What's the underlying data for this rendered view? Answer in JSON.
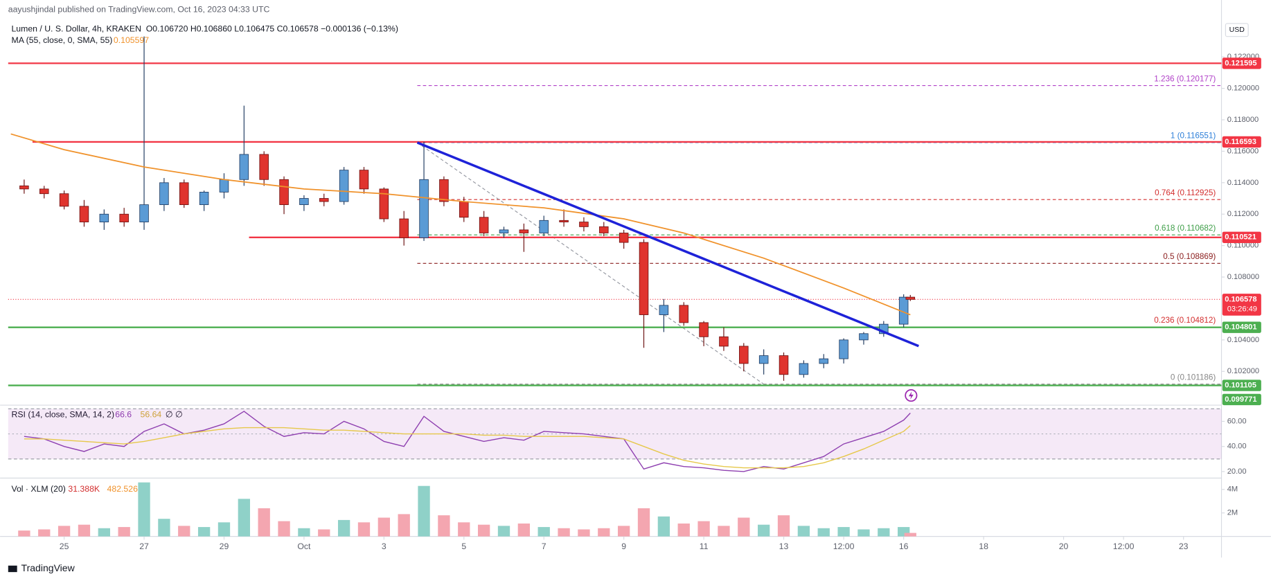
{
  "header": {
    "publisher": "aayushjindal published on TradingView.com, Oct 16, 2023 04:33 UTC",
    "symbol": "Lumen / U. S. Dollar, 4h, KRAKEN",
    "ohlc_text": "O0.106720 H0.106860 L0.106475 C0.106578 −0.000136 (−0.13%)",
    "currency": "USD",
    "brand": "TradingView"
  },
  "chart_data": [
    {
      "type": "candlestick",
      "x": [
        "2023-09-24T00:00",
        "2023-09-24T12:00",
        "2023-09-25T00:00",
        "2023-09-25T12:00",
        "2023-09-26T00:00",
        "2023-09-26T12:00",
        "2023-09-27T00:00",
        "2023-09-27T12:00",
        "2023-09-28T00:00",
        "2023-09-28T12:00",
        "2023-09-29T00:00",
        "2023-09-29T12:00",
        "2023-09-30T00:00",
        "2023-09-30T12:00",
        "2023-10-01T00:00",
        "2023-10-01T12:00",
        "2023-10-02T00:00",
        "2023-10-02T12:00",
        "2023-10-03T00:00",
        "2023-10-03T12:00",
        "2023-10-04T00:00",
        "2023-10-04T12:00",
        "2023-10-05T00:00",
        "2023-10-05T12:00",
        "2023-10-06T00:00",
        "2023-10-06T12:00",
        "2023-10-07T00:00",
        "2023-10-07T12:00",
        "2023-10-08T00:00",
        "2023-10-08T12:00",
        "2023-10-09T00:00",
        "2023-10-09T12:00",
        "2023-10-10T00:00",
        "2023-10-10T12:00",
        "2023-10-11T00:00",
        "2023-10-11T12:00",
        "2023-10-12T00:00",
        "2023-10-12T12:00",
        "2023-10-13T00:00",
        "2023-10-13T12:00",
        "2023-10-14T00:00",
        "2023-10-14T12:00",
        "2023-10-15T00:00",
        "2023-10-15T12:00",
        "2023-10-16T00:00",
        "2023-10-16T04:00"
      ],
      "open": [
        0.1138,
        0.1136,
        0.1133,
        0.1125,
        0.1115,
        0.112,
        0.1115,
        0.1126,
        0.114,
        0.1126,
        0.1134,
        0.1142,
        0.1158,
        0.1142,
        0.1126,
        0.113,
        0.1128,
        0.1148,
        0.1136,
        0.1117,
        0.1105,
        0.1142,
        0.1128,
        0.1118,
        0.1108,
        0.111,
        0.1108,
        0.1116,
        0.1115,
        0.1112,
        0.1108,
        0.1102,
        0.1056,
        0.1062,
        0.1051,
        0.1042,
        0.1036,
        0.1025,
        0.103,
        0.1018,
        0.1025,
        0.1028,
        0.104,
        0.1044,
        0.105,
        0.10672
      ],
      "high": [
        0.1142,
        0.1138,
        0.1135,
        0.1129,
        0.1123,
        0.1124,
        0.1233,
        0.1143,
        0.1142,
        0.1135,
        0.1146,
        0.1189,
        0.116,
        0.1144,
        0.1132,
        0.1133,
        0.115,
        0.115,
        0.1137,
        0.1122,
        0.1166,
        0.1144,
        0.1131,
        0.1122,
        0.1112,
        0.1114,
        0.1119,
        0.1123,
        0.1118,
        0.1115,
        0.111,
        0.1104,
        0.1066,
        0.1064,
        0.1052,
        0.1048,
        0.1038,
        0.1034,
        0.1032,
        0.1027,
        0.1031,
        0.1041,
        0.1045,
        0.1052,
        0.1069,
        0.10686
      ],
      "low": [
        0.1133,
        0.113,
        0.1123,
        0.1112,
        0.111,
        0.1112,
        0.111,
        0.1122,
        0.1124,
        0.1122,
        0.113,
        0.1138,
        0.1138,
        0.112,
        0.1122,
        0.1125,
        0.1126,
        0.1133,
        0.1115,
        0.11,
        0.1103,
        0.1125,
        0.1115,
        0.1106,
        0.1105,
        0.1096,
        0.1106,
        0.1112,
        0.1109,
        0.1106,
        0.1098,
        0.1035,
        0.1045,
        0.1049,
        0.1036,
        0.1033,
        0.102,
        0.1018,
        0.1014,
        0.1016,
        0.1022,
        0.1025,
        0.1037,
        0.1042,
        0.1048,
        0.106475
      ],
      "close": [
        0.1136,
        0.1133,
        0.1125,
        0.1115,
        0.112,
        0.1115,
        0.1126,
        0.114,
        0.1126,
        0.1134,
        0.1142,
        0.1158,
        0.1142,
        0.1126,
        0.113,
        0.1128,
        0.1148,
        0.1136,
        0.1117,
        0.1105,
        0.1142,
        0.1128,
        0.1118,
        0.1108,
        0.111,
        0.1108,
        0.1116,
        0.1115,
        0.1112,
        0.1108,
        0.1102,
        0.1056,
        0.1062,
        0.1051,
        0.1042,
        0.1036,
        0.1025,
        0.103,
        0.1018,
        0.1025,
        0.1028,
        0.104,
        0.1044,
        0.105,
        0.10672,
        0.106578
      ],
      "up_color": "#5b9bd5",
      "up_border": "#1f3a60",
      "down_color": "#e0342e",
      "down_border": "#6b1010",
      "xlim": [
        "2023-09-23T14:24",
        "2023-10-23T22:48"
      ],
      "xticks": [
        {
          "value": "2023-09-25T00:00",
          "label": "25"
        },
        {
          "value": "2023-09-27T00:00",
          "label": "27"
        },
        {
          "value": "2023-09-29T00:00",
          "label": "29"
        },
        {
          "value": "2023-10-01T00:00",
          "label": "Oct"
        },
        {
          "value": "2023-10-03T00:00",
          "label": "3"
        },
        {
          "value": "2023-10-05T00:00",
          "label": "5"
        },
        {
          "value": "2023-10-07T00:00",
          "label": "7"
        },
        {
          "value": "2023-10-09T00:00",
          "label": "9"
        },
        {
          "value": "2023-10-11T00:00",
          "label": "11"
        },
        {
          "value": "2023-10-13T00:00",
          "label": "13"
        },
        {
          "value": "2023-10-14T12:00",
          "label": "12:00"
        },
        {
          "value": "2023-10-16T00:00",
          "label": "16"
        },
        {
          "value": "2023-10-18T00:00",
          "label": "18"
        },
        {
          "value": "2023-10-20T00:00",
          "label": "20"
        },
        {
          "value": "2023-10-21T12:00",
          "label": "12:00"
        },
        {
          "value": "2023-10-23T00:00",
          "label": "23"
        }
      ],
      "ylim": [
        0.09985,
        0.12562
      ],
      "yticks": [
        {
          "value": 0.122,
          "label": "0.122000"
        },
        {
          "value": 0.12,
          "label": "0.120000"
        },
        {
          "value": 0.118,
          "label": "0.118000"
        },
        {
          "value": 0.116,
          "label": "0.116000"
        },
        {
          "value": 0.114,
          "label": "0.114000"
        },
        {
          "value": 0.112,
          "label": "0.112000"
        },
        {
          "value": 0.11,
          "label": "0.110000"
        },
        {
          "value": 0.108,
          "label": "0.108000"
        },
        {
          "value": 0.104,
          "label": "0.104000"
        },
        {
          "value": 0.102,
          "label": "0.102000"
        }
      ],
      "ma": {
        "name": "MA (55, close, 0, SMA, 55)",
        "value_text": 0.105597,
        "color": "#f0922b",
        "x": [
          "2023-09-23T16:00",
          "2023-09-25T00:00",
          "2023-09-27T00:00",
          "2023-09-29T00:00",
          "2023-10-01T00:00",
          "2023-10-03T00:00",
          "2023-10-05T00:00",
          "2023-10-07T00:00",
          "2023-10-09T00:00",
          "2023-10-10T12:00",
          "2023-10-12T12:00",
          "2023-10-14T12:00",
          "2023-10-16T04:00"
        ],
        "values": [
          0.1171,
          0.1161,
          0.115,
          0.1142,
          0.1136,
          0.1133,
          0.1128,
          0.1124,
          0.1117,
          0.1108,
          0.1092,
          0.1073,
          0.105597
        ]
      },
      "levels": [
        {
          "value": 0.121595,
          "color": "#f23645",
          "from": "2023-09-23T14:24"
        },
        {
          "value": 0.116593,
          "color": "#f23645",
          "from": "2023-09-24T05:00"
        },
        {
          "value": 0.110521,
          "color": "#f23645",
          "from": "2023-09-29T15:00"
        },
        {
          "value": 0.104801,
          "color": "#4caf50",
          "from": "2023-09-23T14:24"
        },
        {
          "value": 0.101105,
          "color": "#4caf50",
          "from": "2023-09-23T14:24"
        },
        {
          "value": 0.099771,
          "color": "#4caf50"
        }
      ],
      "last_price": {
        "value": 0.106578,
        "color": "#f23645",
        "countdown": "03:26:49"
      },
      "trendline": {
        "x": [
          "2023-10-03T20:00",
          "2023-10-16T09:00"
        ],
        "values": [
          0.11655,
          0.10361
        ],
        "color": "#1e22d8"
      },
      "fib": {
        "from": "2023-10-03T20:00",
        "guide_x": [
          "2023-10-03T20:00",
          "2023-10-12T12:00"
        ],
        "levels": [
          {
            "label": "1.236 (0.120177)",
            "value": 0.120177,
            "color": "#b040c8"
          },
          {
            "label": "1 (0.116551)",
            "value": 0.116551,
            "color": "#2d7fd8"
          },
          {
            "label": "0.764 (0.112925)",
            "value": 0.112925,
            "color": "#d32f2f"
          },
          {
            "label": "0.618 (0.110682)",
            "value": 0.110682,
            "color": "#3e9e48"
          },
          {
            "label": "0.5 (0.108869)",
            "value": 0.108869,
            "color": "#8a1c1c"
          },
          {
            "label": "0.236 (0.104812)",
            "value": 0.104812,
            "color": "#d32f2f"
          },
          {
            "label": "0 (0.101186)",
            "value": 0.101186,
            "color": "#888888"
          }
        ]
      }
    },
    {
      "type": "line",
      "title": "RSI (14, close, SMA, 14, 2)",
      "extra": "∅ ∅",
      "ylim": [
        14.8,
        72.9
      ],
      "bands": [
        70,
        30
      ],
      "mid": 50,
      "yticks": [
        {
          "value": 60,
          "label": "60.00"
        },
        {
          "value": 40,
          "label": "40.00"
        },
        {
          "value": 20,
          "label": "20.00"
        }
      ],
      "series": [
        {
          "name": 66.6,
          "color": "#8e3fb0",
          "values": [
            48,
            46,
            40,
            36,
            42,
            40,
            52,
            58,
            50,
            53,
            58,
            68,
            56,
            48,
            51,
            50,
            60,
            54,
            44,
            40,
            64,
            52,
            48,
            44,
            47,
            45,
            52,
            51,
            50,
            48,
            46,
            22,
            27,
            24,
            23,
            21,
            20,
            24,
            22,
            27,
            32,
            42,
            47,
            52,
            61,
            66.6
          ]
        },
        {
          "name": 56.64,
          "color": "#e6c84a",
          "values": [
            46,
            46,
            45,
            44,
            43,
            42,
            44,
            47,
            50,
            52,
            54,
            55,
            55,
            55,
            54,
            53,
            53,
            52,
            51,
            50,
            50,
            50,
            50,
            49,
            49,
            48,
            48,
            48,
            48,
            47,
            46,
            40,
            34,
            29,
            26,
            24,
            23,
            23,
            23,
            24,
            27,
            32,
            38,
            45,
            52,
            56.64
          ]
        }
      ]
    },
    {
      "type": "bar",
      "title": "Vol · XLM (20)",
      "stats": [
        "31.388K",
        "482.526K"
      ],
      "ylim": [
        0,
        4830000
      ],
      "yticks": [
        {
          "value": 4000000,
          "label": "4M"
        },
        {
          "value": 2000000,
          "label": "2M"
        }
      ],
      "up_color": "#8fd1c8",
      "down_color": "#f4a6b0",
      "values": [
        500000,
        600000,
        900000,
        1000000,
        700000,
        800000,
        4600000,
        1500000,
        900000,
        800000,
        1200000,
        3200000,
        2400000,
        1300000,
        700000,
        600000,
        1400000,
        1200000,
        1600000,
        1900000,
        4300000,
        1800000,
        1200000,
        1000000,
        900000,
        1100000,
        800000,
        700000,
        600000,
        700000,
        900000,
        2400000,
        1700000,
        1100000,
        1300000,
        900000,
        1600000,
        1000000,
        1800000,
        900000,
        700000,
        800000,
        600000,
        700000,
        800000,
        300000
      ]
    }
  ]
}
